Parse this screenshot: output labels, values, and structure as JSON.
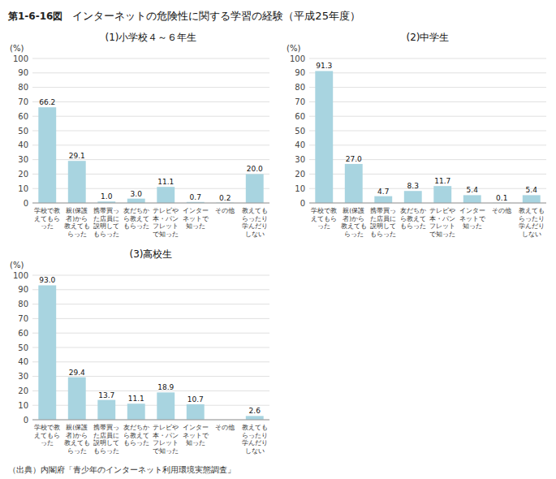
{
  "title": "インターネットの危険性に関する学習の経験（平成25年度）",
  "annotations": [
    "第1-6-16図",
    "（出典）内閣府「青少年のインターネット利用環境実態調査」"
  ],
  "chart_data": [
    {
      "type": "bar",
      "title": "(1)小学校４～６年生",
      "y_label": "(%)",
      "categories": [
        "学校で教\nえてもら\nった",
        "親(保護\n者)から\n教えても\nらった",
        "携帯買っ\nた店員に\n説明して\nもらった",
        "友だちか\nら教えて\nもらった",
        "テレビや\n本・パン\nフレット\nで知った",
        "インター\nネットで\n知った",
        "その他",
        "教えても\nらったり\n学んだり\nしない"
      ],
      "values": [
        66.2,
        29.1,
        1.0,
        3.0,
        11.1,
        0.7,
        0.2,
        20.0
      ],
      "value_labels": [
        "66.2",
        "29.1",
        "1.0",
        "3.0",
        "11.1",
        "0.7",
        "0.2",
        "20.0"
      ],
      "color": "#a8d4e0",
      "ylim": [
        0,
        100
      ],
      "yticks": [
        0,
        10,
        20,
        30,
        40,
        50,
        60,
        70,
        80,
        90,
        100
      ],
      "grid": true,
      "data_labels": true
    },
    {
      "type": "bar",
      "title": "(2)中学生",
      "y_label": "(%)",
      "categories": [
        "学校で教\nえてもら\nった",
        "親(保護\n者)から\n教えても\nらった",
        "携帯買っ\nた店員に\n説明して\nもらった",
        "友だちか\nら教えて\nもらった",
        "テレビや\n本・パン\nフレット\nで知った",
        "インター\nネットで\n知った",
        "その他",
        "教えても\nらったり\n学んだり\nしない"
      ],
      "values": [
        91.3,
        27.0,
        4.7,
        8.3,
        11.7,
        5.4,
        0.1,
        5.4
      ],
      "value_labels": [
        "91.3",
        "27.0",
        "4.7",
        "8.3",
        "11.7",
        "5.4",
        "0.1",
        "5.4"
      ],
      "color": "#a8d4e0",
      "ylim": [
        0,
        100
      ],
      "yticks": [
        0,
        10,
        20,
        30,
        40,
        50,
        60,
        70,
        80,
        90,
        100
      ],
      "grid": true,
      "data_labels": true
    },
    {
      "type": "bar",
      "title": "(3)高校生",
      "y_label": "(%)",
      "categories": [
        "学校で教\nえてもら\nった",
        "親(保護\n者)から\n教えても\nらった",
        "携帯買っ\nた店員に\n説明して\nもらった",
        "友だちか\nら教えて\nもらった",
        "テレビや\n本・パン\nフレット\nで知った",
        "インター\nネットで\n知った",
        "その他",
        "教えても\nらったり\n学んだり\nしない"
      ],
      "values": [
        93.0,
        29.4,
        13.7,
        11.1,
        18.9,
        10.7,
        0.0,
        2.6
      ],
      "value_labels": [
        "93.0",
        "29.4",
        "13.7",
        "11.1",
        "18.9",
        "10.7",
        null,
        "2.6"
      ],
      "color": "#a8d4e0",
      "ylim": [
        0,
        100
      ],
      "yticks": [
        0,
        10,
        20,
        30,
        40,
        50,
        60,
        70,
        80,
        90,
        100
      ],
      "grid": true,
      "data_labels": true
    }
  ]
}
